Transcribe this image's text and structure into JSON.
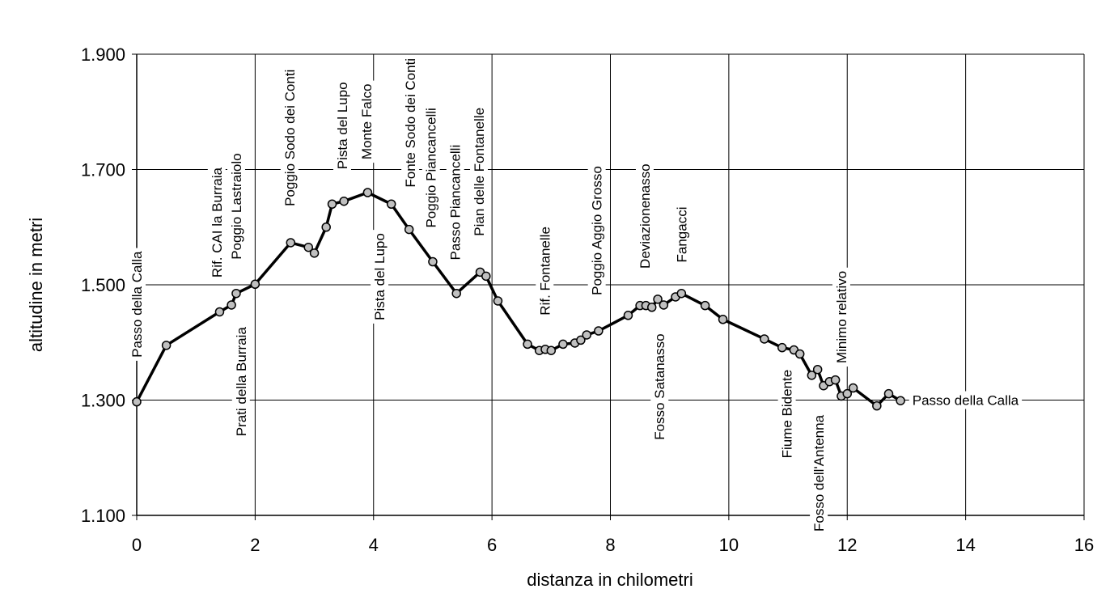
{
  "chart_data": {
    "type": "line",
    "xlabel": "distanza in chilometri",
    "ylabel": "altitudine  in metri",
    "x": [
      0,
      0.5,
      1.4,
      1.6,
      1.68,
      2.0,
      2.6,
      2.9,
      3.0,
      3.2,
      3.3,
      3.5,
      3.9,
      4.3,
      4.6,
      5.0,
      5.4,
      5.8,
      5.9,
      6.1,
      6.6,
      6.8,
      6.9,
      7.0,
      7.2,
      7.4,
      7.5,
      7.6,
      7.8,
      8.3,
      8.5,
      8.6,
      8.7,
      8.8,
      8.9,
      9.1,
      9.2,
      9.6,
      9.9,
      10.6,
      10.9,
      11.1,
      11.2,
      11.4,
      11.5,
      11.6,
      11.7,
      11.8,
      11.9,
      12.0,
      12.1,
      12.5,
      12.7,
      12.9
    ],
    "series": [
      {
        "color": "#000000",
        "marker_color": "#c0c0c0",
        "values": [
          1297,
          1395,
          1453,
          1465,
          1485,
          1501,
          1573,
          1565,
          1555,
          1600,
          1640,
          1645,
          1660,
          1640,
          1596,
          1540,
          1485,
          1522,
          1515,
          1472,
          1397,
          1386,
          1388,
          1386,
          1397,
          1399,
          1404,
          1413,
          1420,
          1447,
          1464,
          1464,
          1461,
          1475,
          1465,
          1479,
          1485,
          1464,
          1440,
          1406,
          1391,
          1387,
          1380,
          1343,
          1353,
          1325,
          1332,
          1335,
          1307,
          1311,
          1321,
          1290,
          1311,
          1299
        ]
      }
    ],
    "xlim": [
      0,
      16
    ],
    "xticks": [
      0,
      2,
      4,
      6,
      8,
      10,
      12,
      14,
      16
    ],
    "ylim": [
      1100,
      1900
    ],
    "yticks": [
      {
        "value": 1100,
        "label": "1.100"
      },
      {
        "value": 1300,
        "label": "1.300"
      },
      {
        "value": 1500,
        "label": "1.500"
      },
      {
        "value": 1700,
        "label": "1.700"
      },
      {
        "value": 1900,
        "label": "1.900"
      }
    ],
    "grid": true,
    "annotations": [
      {
        "text": "Passo della Calla",
        "x": 0,
        "y": 1466,
        "orientation": "vertical"
      },
      {
        "text": "Rif. CAI la Burraia",
        "x": 1.35,
        "y": 1608,
        "orientation": "vertical"
      },
      {
        "text": "Poggio Lastraiolo",
        "x": 1.68,
        "y": 1636,
        "orientation": "vertical"
      },
      {
        "text": "Prati della Burraia",
        "x": 1.76,
        "y": 1332,
        "orientation": "vertical"
      },
      {
        "text": "Poggio Sodo dei Conti",
        "x": 2.58,
        "y": 1755,
        "orientation": "vertical"
      },
      {
        "text": "Pista del Lupo",
        "x": 3.47,
        "y": 1776,
        "orientation": "vertical"
      },
      {
        "text": "Monte Falco",
        "x": 3.88,
        "y": 1783,
        "orientation": "vertical"
      },
      {
        "text": "Pista del Lupo",
        "x": 4.1,
        "y": 1514,
        "orientation": "vertical"
      },
      {
        "text": "Fonte Sodo dei Conti",
        "x": 4.62,
        "y": 1781,
        "orientation": "vertical"
      },
      {
        "text": "Poggio Piancancelli",
        "x": 4.97,
        "y": 1703,
        "orientation": "vertical"
      },
      {
        "text": "Passo Piancancelli",
        "x": 5.38,
        "y": 1643,
        "orientation": "vertical"
      },
      {
        "text": "Pian delle Fontanelle",
        "x": 5.78,
        "y": 1696,
        "orientation": "vertical"
      },
      {
        "text": "Rif. Fontanelle",
        "x": 6.89,
        "y": 1524,
        "orientation": "vertical"
      },
      {
        "text": "Poggio Aggio Grosso",
        "x": 7.77,
        "y": 1594,
        "orientation": "vertical"
      },
      {
        "text": "Deviazionenasso",
        "x": 8.58,
        "y": 1619,
        "orientation": "vertical"
      },
      {
        "text": "Fosso Satanasso",
        "x": 8.83,
        "y": 1323,
        "orientation": "vertical"
      },
      {
        "text": "Fangacci",
        "x": 9.2,
        "y": 1587,
        "orientation": "vertical"
      },
      {
        "text": "Fiume Bidente",
        "x": 10.98,
        "y": 1276,
        "orientation": "vertical"
      },
      {
        "text": "Fosso dell'Antenna",
        "x": 11.52,
        "y": 1173,
        "orientation": "vertical"
      },
      {
        "text": "Minimo relativo",
        "x": 11.9,
        "y": 1444,
        "orientation": "vertical"
      },
      {
        "text": "Passo della Calla",
        "x": 13.1,
        "y": 1300,
        "orientation": "horizontal"
      }
    ]
  }
}
